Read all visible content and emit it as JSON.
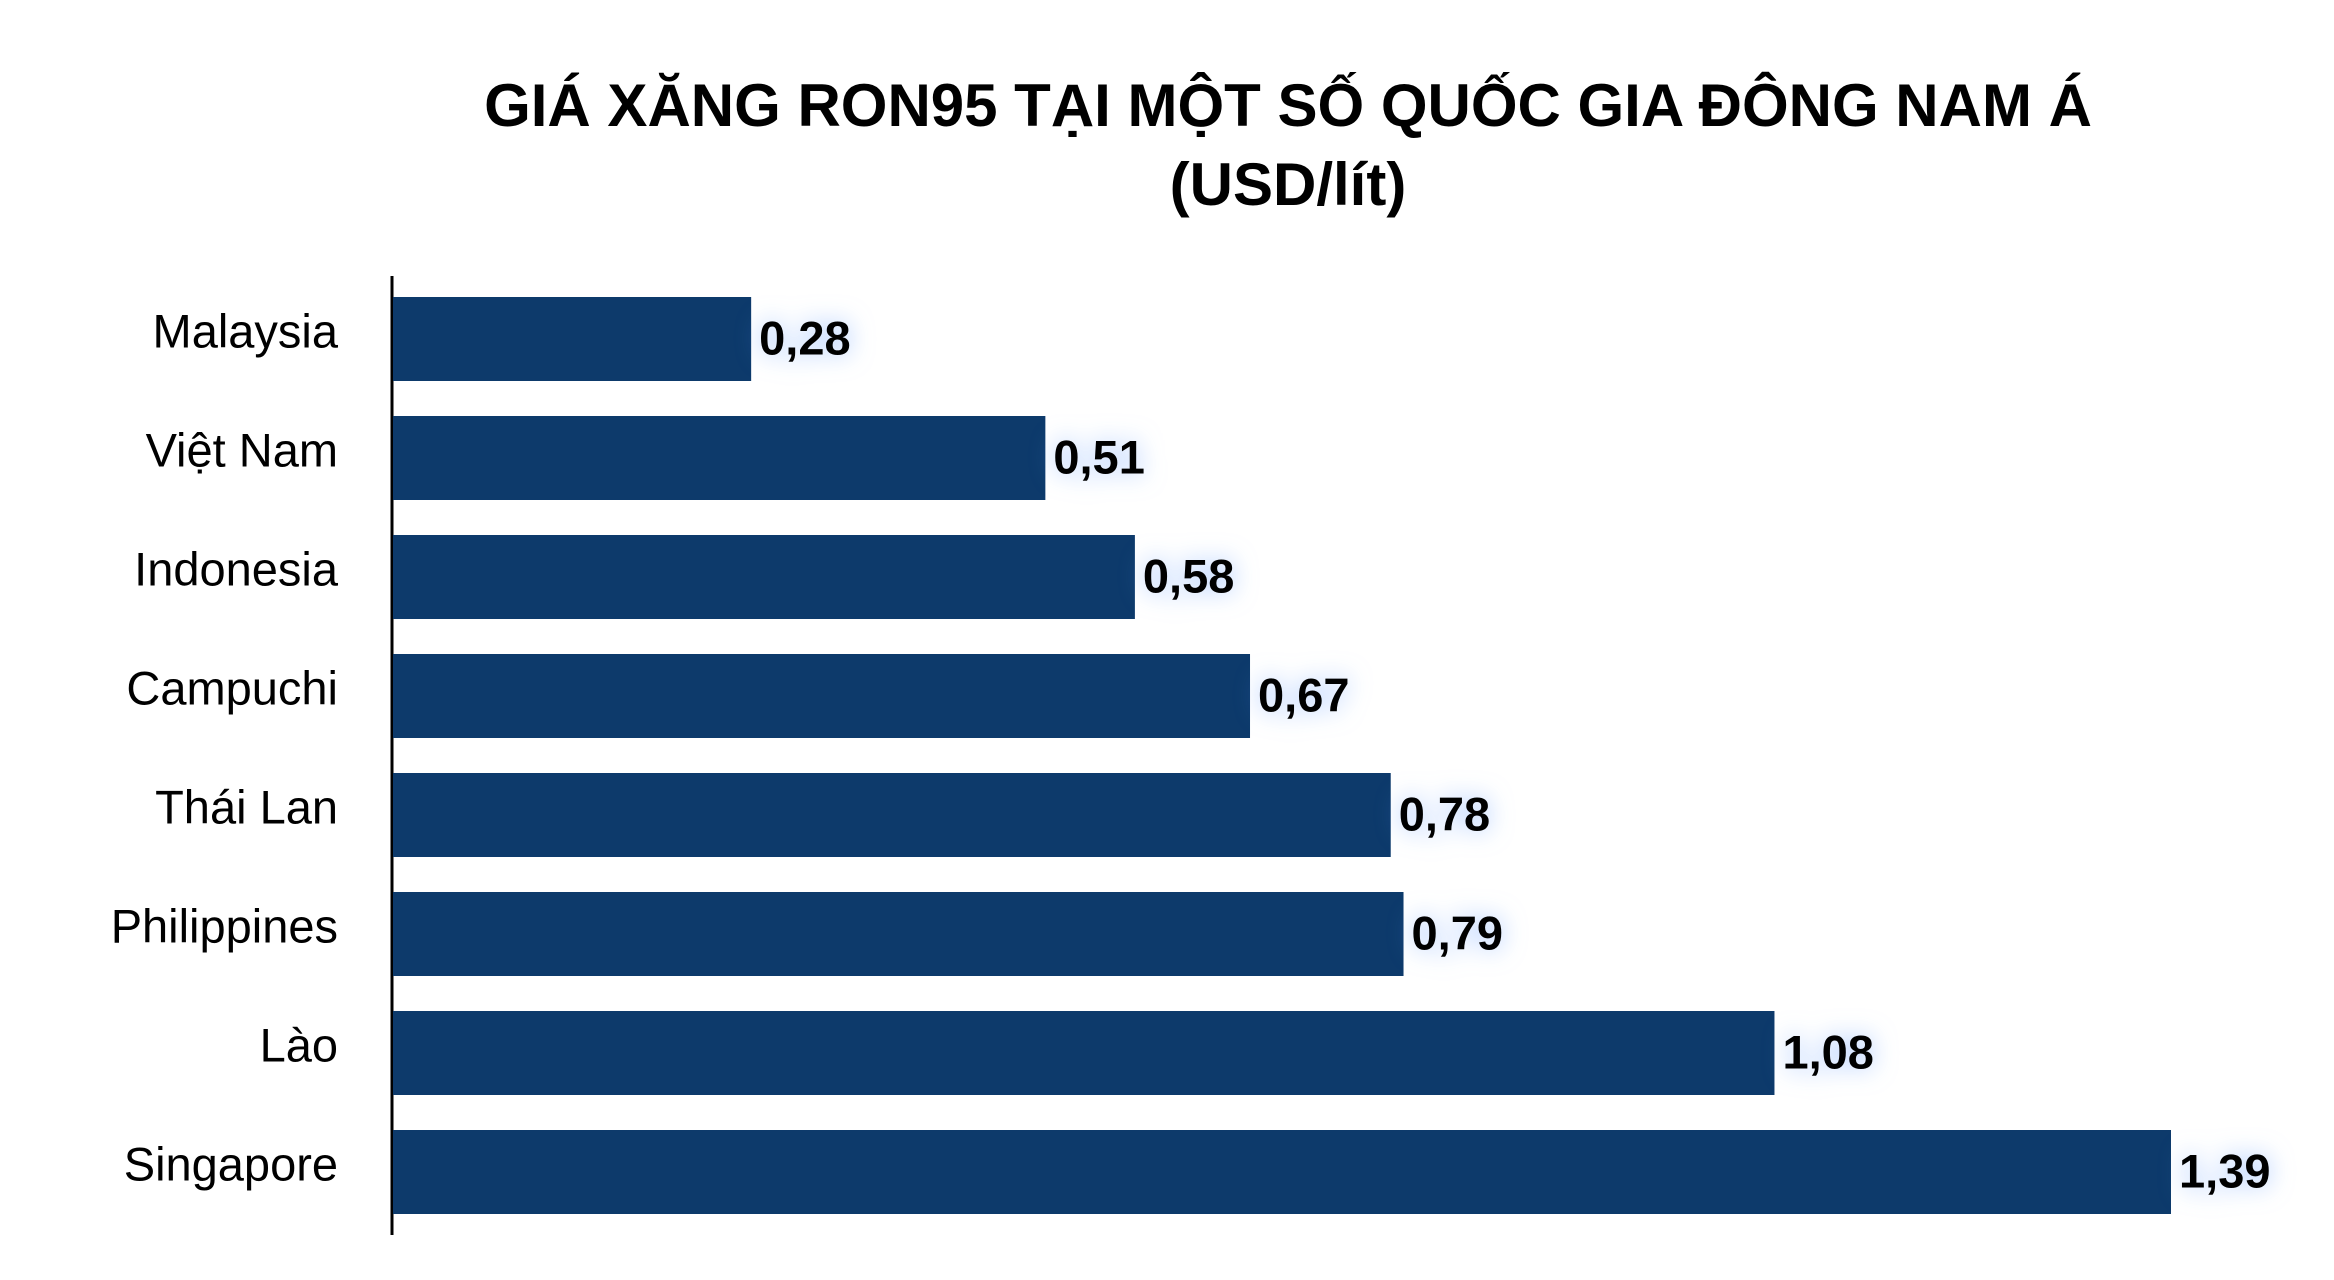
{
  "chart_data": {
    "type": "bar",
    "orientation": "horizontal",
    "title": "GIÁ XĂNG RON95 TẠI MỘT SỐ QUỐC GIA ĐÔNG NAM Á",
    "subtitle": "(USD/lít)",
    "categories": [
      "Malaysia",
      "Việt Nam",
      "Indonesia",
      "Campuchi",
      "Thái Lan",
      "Philippines",
      "Lào",
      "Singapore"
    ],
    "values": [
      0.28,
      0.51,
      0.58,
      0.67,
      0.78,
      0.79,
      1.08,
      1.39
    ],
    "value_labels": [
      "0,28",
      "0,51",
      "0,58",
      "0,67",
      "0,78",
      "0,79",
      "1,08",
      "1,39"
    ],
    "color": "#0d3a6b"
  }
}
